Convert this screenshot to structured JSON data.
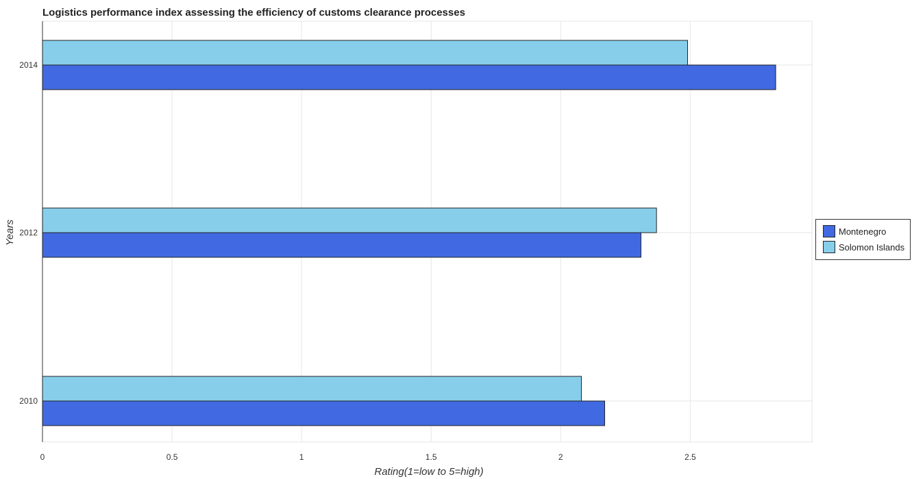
{
  "chart_data": {
    "type": "bar",
    "orientation": "horizontal",
    "title": "Logistics performance index assessing the efficiency of customs clearance processes",
    "xlabel": "Rating(1=low to 5=high)",
    "ylabel": "Years",
    "categories": [
      "2010",
      "2012",
      "2014"
    ],
    "series": [
      {
        "name": "Montenegro",
        "color": "#4169e1",
        "values": [
          2.17,
          2.31,
          2.83
        ]
      },
      {
        "name": "Solomon Islands",
        "color": "#87ceeb",
        "values": [
          2.08,
          2.37,
          2.49
        ]
      }
    ],
    "xlim": [
      0,
      2.97
    ],
    "xticks": [
      "0",
      "0.5",
      "1",
      "1.5",
      "2",
      "2.5"
    ],
    "grid": true,
    "legend": "right"
  }
}
